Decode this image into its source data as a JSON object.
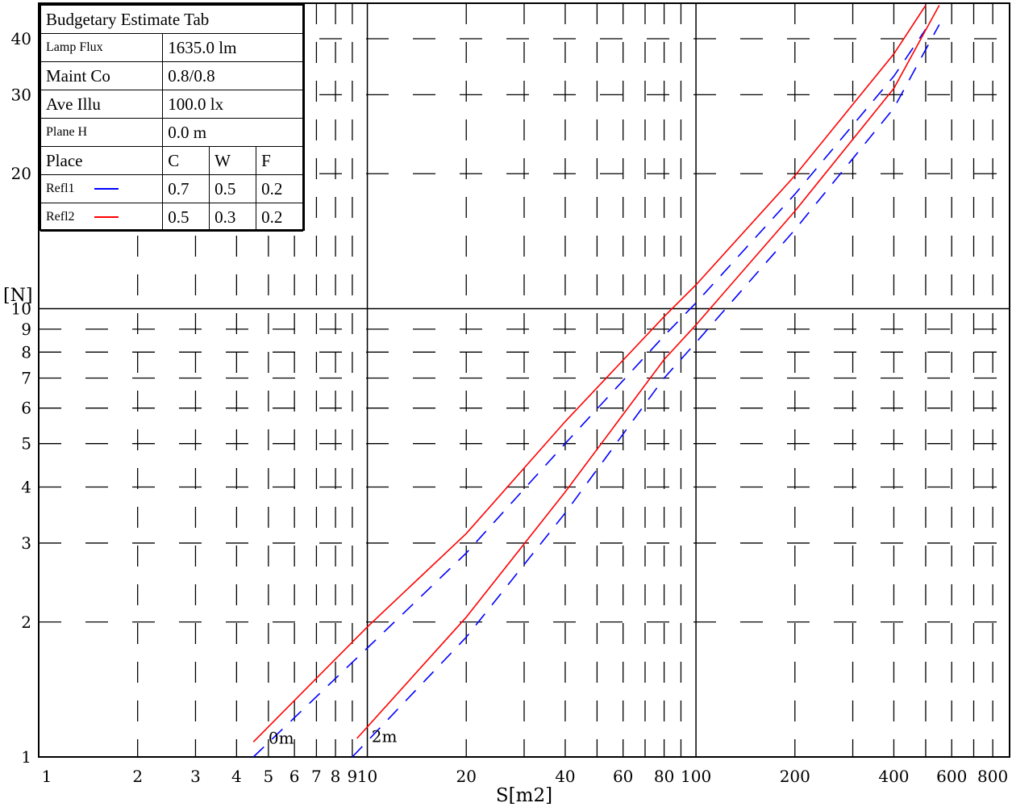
{
  "chart_data": {
    "type": "line",
    "xlabel": "S[m2]",
    "ylabel": "[N]",
    "x_scale": "log",
    "y_scale": "log",
    "xlim": [
      1,
      900
    ],
    "ylim": [
      1,
      48
    ],
    "x_ticks": [
      "1",
      "2",
      "3",
      "4",
      "5",
      "6",
      "7",
      "8",
      "9",
      "10",
      "20",
      "40",
      "60",
      "80",
      "100",
      "200",
      "400",
      "600",
      "800"
    ],
    "y_ticks": [
      "1",
      "2",
      "3",
      "4",
      "5",
      "6",
      "7",
      "8",
      "9",
      "10",
      "20",
      "30",
      "40"
    ],
    "series": [
      {
        "name": "Refl2",
        "curve_label": "0m",
        "color": "#ff0000",
        "x": [
          4.5,
          10,
          20,
          40,
          80,
          100,
          200,
          400,
          500
        ],
        "y": [
          1.08,
          1.95,
          3.15,
          5.6,
          9.6,
          11.3,
          19.8,
          37.0,
          47.5
        ]
      },
      {
        "name": "Refl1",
        "curve_label": "0m",
        "color": "#0000ff",
        "dashed": true,
        "x": [
          4.5,
          10,
          20,
          40,
          80,
          100,
          200,
          400,
          500
        ],
        "y": [
          1.0,
          1.75,
          2.85,
          5.0,
          8.7,
          10.3,
          18.0,
          33.0,
          42.0
        ]
      },
      {
        "name": "Refl2",
        "curve_label": "2m",
        "color": "#ff0000",
        "x": [
          9.3,
          20,
          40,
          80,
          100,
          200,
          400,
          550
        ],
        "y": [
          1.1,
          2.05,
          3.9,
          7.7,
          9.2,
          16.5,
          31.0,
          47.5
        ]
      },
      {
        "name": "Refl1",
        "curve_label": "2m",
        "color": "#0000ff",
        "dashed": true,
        "x": [
          9.0,
          20,
          40,
          80,
          100,
          200,
          400,
          550
        ],
        "y": [
          1.0,
          1.85,
          3.5,
          7.0,
          8.4,
          15.0,
          28.0,
          43.0
        ]
      }
    ],
    "curve_labels": [
      {
        "text": "0m",
        "x": 5.0,
        "y": 1.07
      },
      {
        "text": "2m",
        "x": 10.3,
        "y": 1.08
      }
    ],
    "grid": true
  },
  "legend": {
    "title": "Budgetary Estimate Tab",
    "rows": [
      {
        "label": "Lamp Flux",
        "value": "1635.0 lm"
      },
      {
        "label": "Maint Co",
        "value": "0.8/0.8"
      },
      {
        "label": "Ave Illu",
        "value": "100.0 lx"
      },
      {
        "label": "Plane H",
        "value": "0.0 m"
      }
    ],
    "header": {
      "place": "Place",
      "c": "C",
      "w": "W",
      "f": "F"
    },
    "refl": [
      {
        "name": "Refl1",
        "color": "#0000ff",
        "c": "0.7",
        "w": "0.5",
        "f": "0.2"
      },
      {
        "name": "Refl2",
        "color": "#ff0000",
        "c": "0.5",
        "w": "0.3",
        "f": "0.2"
      }
    ]
  }
}
